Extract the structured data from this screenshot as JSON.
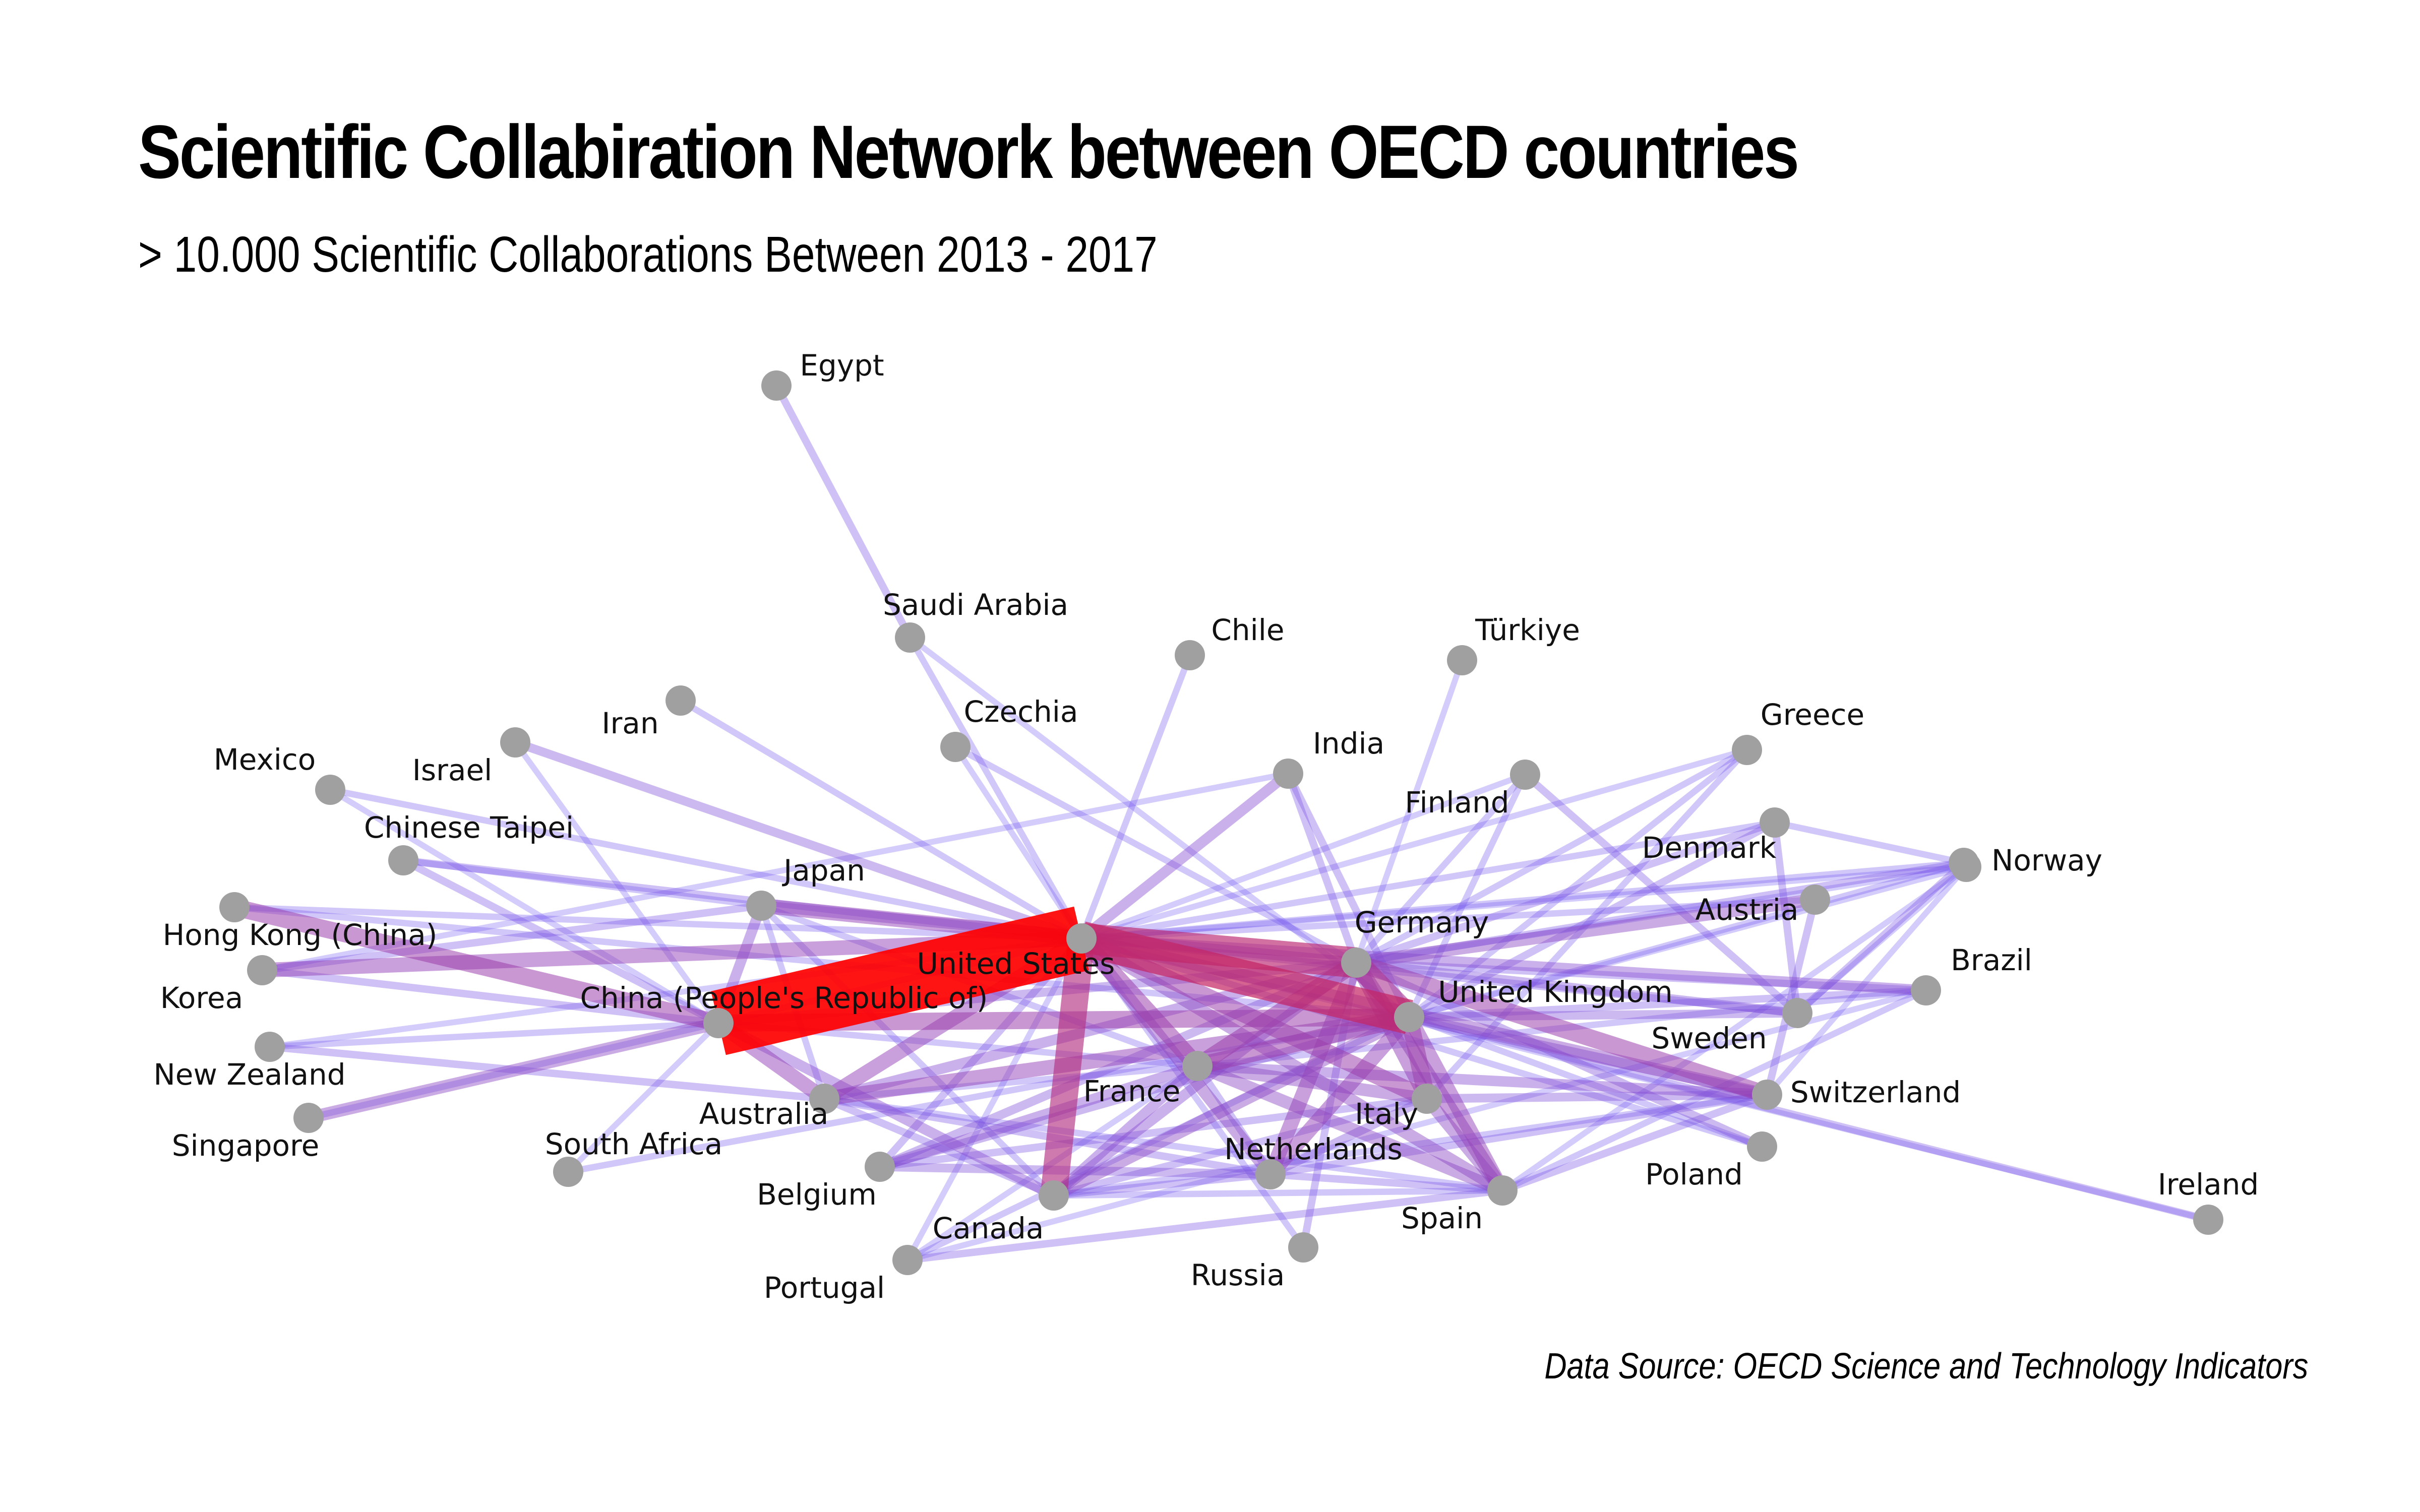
{
  "title": "Scientific Collabiration Network between OECD countries",
  "subtitle": "> 10.000 Scientific Collaborations Between 2013 - 2017",
  "source": "Data Source: OECD Science and Technology Indicators",
  "colors": {
    "node": "#a0a0a0",
    "weak_edge": "#6a5cff",
    "strong_edge": "#ff0000"
  },
  "nodes": [
    {
      "id": "us",
      "label": "United States"
    },
    {
      "id": "cn",
      "label": "China (People's Republic of)"
    },
    {
      "id": "de",
      "label": "Germany"
    },
    {
      "id": "uk",
      "label": "United Kingdom"
    },
    {
      "id": "fr",
      "label": "France"
    },
    {
      "id": "it",
      "label": "Italy"
    },
    {
      "id": "ca",
      "label": "Canada"
    },
    {
      "id": "au",
      "label": "Australia"
    },
    {
      "id": "jp",
      "label": "Japan"
    },
    {
      "id": "es",
      "label": "Spain"
    },
    {
      "id": "nl",
      "label": "Netherlands"
    },
    {
      "id": "ch",
      "label": "Switzerland"
    },
    {
      "id": "se",
      "label": "Sweden"
    },
    {
      "id": "be",
      "label": "Belgium"
    },
    {
      "id": "kr",
      "label": "Korea"
    },
    {
      "id": "in",
      "label": "India"
    },
    {
      "id": "br",
      "label": "Brazil"
    },
    {
      "id": "at",
      "label": "Austria"
    },
    {
      "id": "dk",
      "label": "Denmark"
    },
    {
      "id": "no",
      "label": "Norway"
    },
    {
      "id": "pl",
      "label": "Poland"
    },
    {
      "id": "fi",
      "label": "Finland"
    },
    {
      "id": "ru",
      "label": "Russia"
    },
    {
      "id": "pt",
      "label": "Portugal"
    },
    {
      "id": "gr",
      "label": "Greece"
    },
    {
      "id": "ie",
      "label": "Ireland"
    },
    {
      "id": "tr",
      "label": "Türkiye"
    },
    {
      "id": "cl",
      "label": "Chile"
    },
    {
      "id": "cz",
      "label": "Czechia"
    },
    {
      "id": "sa",
      "label": "Saudi Arabia"
    },
    {
      "id": "eg",
      "label": "Egypt"
    },
    {
      "id": "ir",
      "label": "Iran"
    },
    {
      "id": "il",
      "label": "Israel"
    },
    {
      "id": "mx",
      "label": "Mexico"
    },
    {
      "id": "tw",
      "label": "Chinese Taipei"
    },
    {
      "id": "hk",
      "label": "Hong Kong (China)"
    },
    {
      "id": "nz",
      "label": "New Zealand"
    },
    {
      "id": "sg",
      "label": "Singapore"
    },
    {
      "id": "za",
      "label": "South Africa"
    },
    {
      "id": "ext",
      "label": ""
    }
  ],
  "edges": [
    {
      "s": "us",
      "t": "cn",
      "w": 1.0
    },
    {
      "s": "us",
      "t": "uk",
      "w": 0.7
    },
    {
      "s": "us",
      "t": "de",
      "w": 0.65
    },
    {
      "s": "us",
      "t": "ca",
      "w": 0.6
    },
    {
      "s": "us",
      "t": "fr",
      "w": 0.45
    },
    {
      "s": "us",
      "t": "it",
      "w": 0.45
    },
    {
      "s": "us",
      "t": "au",
      "w": 0.4
    },
    {
      "s": "us",
      "t": "kr",
      "w": 0.4
    },
    {
      "s": "us",
      "t": "jp",
      "w": 0.4
    },
    {
      "s": "us",
      "t": "es",
      "w": 0.35
    },
    {
      "s": "us",
      "t": "ch",
      "w": 0.35
    },
    {
      "s": "us",
      "t": "nl",
      "w": 0.35
    },
    {
      "s": "us",
      "t": "in",
      "w": 0.3
    },
    {
      "s": "us",
      "t": "br",
      "w": 0.3
    },
    {
      "s": "us",
      "t": "il",
      "w": 0.25
    },
    {
      "s": "us",
      "t": "tw",
      "w": 0.2
    },
    {
      "s": "us",
      "t": "se",
      "w": 0.2
    },
    {
      "s": "us",
      "t": "hk",
      "w": 0.15
    },
    {
      "s": "us",
      "t": "cl",
      "w": 0.15
    },
    {
      "s": "us",
      "t": "ir",
      "w": 0.15
    },
    {
      "s": "us",
      "t": "mx",
      "w": 0.15
    },
    {
      "s": "us",
      "t": "sa",
      "w": 0.15
    },
    {
      "s": "us",
      "t": "dk",
      "w": 0.15
    },
    {
      "s": "us",
      "t": "be",
      "w": 0.2
    },
    {
      "s": "us",
      "t": "at",
      "w": 0.15
    },
    {
      "s": "us",
      "t": "no",
      "w": 0.15
    },
    {
      "s": "us",
      "t": "gr",
      "w": 0.12
    },
    {
      "s": "us",
      "t": "ie",
      "w": 0.12
    },
    {
      "s": "us",
      "t": "pt",
      "w": 0.12
    },
    {
      "s": "us",
      "t": "pl",
      "w": 0.15
    },
    {
      "s": "us",
      "t": "ru",
      "w": 0.15
    },
    {
      "s": "us",
      "t": "fi",
      "w": 0.12
    },
    {
      "s": "us",
      "t": "nz",
      "w": 0.12
    },
    {
      "s": "us",
      "t": "sg",
      "w": 0.15
    },
    {
      "s": "us",
      "t": "cz",
      "w": 0.12
    },
    {
      "s": "cn",
      "t": "uk",
      "w": 0.45
    },
    {
      "s": "cn",
      "t": "au",
      "w": 0.4
    },
    {
      "s": "cn",
      "t": "hk",
      "w": 0.45
    },
    {
      "s": "cn",
      "t": "sg",
      "w": 0.35
    },
    {
      "s": "cn",
      "t": "jp",
      "w": 0.3
    },
    {
      "s": "cn",
      "t": "ca",
      "w": 0.3
    },
    {
      "s": "cn",
      "t": "de",
      "w": 0.25
    },
    {
      "s": "cn",
      "t": "kr",
      "w": 0.2
    },
    {
      "s": "cn",
      "t": "tw",
      "w": 0.2
    },
    {
      "s": "cn",
      "t": "fr",
      "w": 0.15
    },
    {
      "s": "cn",
      "t": "nz",
      "w": 0.15
    },
    {
      "s": "cn",
      "t": "mx",
      "w": 0.12
    },
    {
      "s": "cn",
      "t": "za",
      "w": 0.12
    },
    {
      "s": "cn",
      "t": "il",
      "w": 0.12
    },
    {
      "s": "de",
      "t": "uk",
      "w": 0.55
    },
    {
      "s": "de",
      "t": "fr",
      "w": 0.45
    },
    {
      "s": "de",
      "t": "it",
      "w": 0.4
    },
    {
      "s": "de",
      "t": "ch",
      "w": 0.45
    },
    {
      "s": "de",
      "t": "nl",
      "w": 0.4
    },
    {
      "s": "de",
      "t": "es",
      "w": 0.4
    },
    {
      "s": "de",
      "t": "at",
      "w": 0.35
    },
    {
      "s": "de",
      "t": "se",
      "w": 0.25
    },
    {
      "s": "de",
      "t": "pl",
      "w": 0.25
    },
    {
      "s": "de",
      "t": "be",
      "w": 0.25
    },
    {
      "s": "de",
      "t": "ca",
      "w": 0.3
    },
    {
      "s": "de",
      "t": "au",
      "w": 0.3
    },
    {
      "s": "de",
      "t": "jp",
      "w": 0.3
    },
    {
      "s": "de",
      "t": "dk",
      "w": 0.2
    },
    {
      "s": "de",
      "t": "no",
      "w": 0.2
    },
    {
      "s": "de",
      "t": "ru",
      "w": 0.2
    },
    {
      "s": "de",
      "t": "in",
      "w": 0.2
    },
    {
      "s": "de",
      "t": "br",
      "w": 0.2
    },
    {
      "s": "de",
      "t": "fi",
      "w": 0.15
    },
    {
      "s": "de",
      "t": "cz",
      "w": 0.15
    },
    {
      "s": "de",
      "t": "gr",
      "w": 0.15
    },
    {
      "s": "de",
      "t": "tr",
      "w": 0.12
    },
    {
      "s": "uk",
      "t": "fr",
      "w": 0.45
    },
    {
      "s": "uk",
      "t": "it",
      "w": 0.45
    },
    {
      "s": "uk",
      "t": "es",
      "w": 0.4
    },
    {
      "s": "uk",
      "t": "au",
      "w": 0.4
    },
    {
      "s": "uk",
      "t": "nl",
      "w": 0.4
    },
    {
      "s": "uk",
      "t": "ca",
      "w": 0.35
    },
    {
      "s": "uk",
      "t": "ch",
      "w": 0.3
    },
    {
      "s": "uk",
      "t": "se",
      "w": 0.25
    },
    {
      "s": "uk",
      "t": "be",
      "w": 0.25
    },
    {
      "s": "uk",
      "t": "dk",
      "w": 0.2
    },
    {
      "s": "uk",
      "t": "ie",
      "w": 0.2
    },
    {
      "s": "uk",
      "t": "in",
      "w": 0.2
    },
    {
      "s": "uk",
      "t": "br",
      "w": 0.2
    },
    {
      "s": "uk",
      "t": "gr",
      "w": 0.15
    },
    {
      "s": "uk",
      "t": "no",
      "w": 0.15
    },
    {
      "s": "uk",
      "t": "pt",
      "w": 0.15
    },
    {
      "s": "uk",
      "t": "pl",
      "w": 0.15
    },
    {
      "s": "uk",
      "t": "fi",
      "w": 0.15
    },
    {
      "s": "uk",
      "t": "za",
      "w": 0.15
    },
    {
      "s": "uk",
      "t": "hk",
      "w": 0.15
    },
    {
      "s": "uk",
      "t": "sa",
      "w": 0.12
    },
    {
      "s": "fr",
      "t": "it",
      "w": 0.35
    },
    {
      "s": "fr",
      "t": "es",
      "w": 0.35
    },
    {
      "s": "fr",
      "t": "ch",
      "w": 0.3
    },
    {
      "s": "fr",
      "t": "ca",
      "w": 0.3
    },
    {
      "s": "fr",
      "t": "be",
      "w": 0.3
    },
    {
      "s": "fr",
      "t": "nl",
      "w": 0.2
    },
    {
      "s": "fr",
      "t": "br",
      "w": 0.15
    },
    {
      "s": "fr",
      "t": "jp",
      "w": 0.15
    },
    {
      "s": "fr",
      "t": "au",
      "w": 0.15
    },
    {
      "s": "fr",
      "t": "pt",
      "w": 0.12
    },
    {
      "s": "it",
      "t": "es",
      "w": 0.35
    },
    {
      "s": "it",
      "t": "ch",
      "w": 0.25
    },
    {
      "s": "it",
      "t": "nl",
      "w": 0.25
    },
    {
      "s": "it",
      "t": "ca",
      "w": 0.2
    },
    {
      "s": "it",
      "t": "be",
      "w": 0.2
    },
    {
      "s": "it",
      "t": "gr",
      "w": 0.15
    },
    {
      "s": "es",
      "t": "nl",
      "w": 0.2
    },
    {
      "s": "es",
      "t": "pt",
      "w": 0.2
    },
    {
      "s": "es",
      "t": "ch",
      "w": 0.2
    },
    {
      "s": "es",
      "t": "br",
      "w": 0.15
    },
    {
      "s": "es",
      "t": "ca",
      "w": 0.15
    },
    {
      "s": "es",
      "t": "au",
      "w": 0.15
    },
    {
      "s": "ca",
      "t": "au",
      "w": 0.2
    },
    {
      "s": "ca",
      "t": "nl",
      "w": 0.2
    },
    {
      "s": "ca",
      "t": "ch",
      "w": 0.15
    },
    {
      "s": "ca",
      "t": "jp",
      "w": 0.15
    },
    {
      "s": "au",
      "t": "nz",
      "w": 0.2
    },
    {
      "s": "au",
      "t": "nl",
      "w": 0.2
    },
    {
      "s": "au",
      "t": "jp",
      "w": 0.15
    },
    {
      "s": "jp",
      "t": "kr",
      "w": 0.2
    },
    {
      "s": "jp",
      "t": "tw",
      "w": 0.15
    },
    {
      "s": "nl",
      "t": "be",
      "w": 0.25
    },
    {
      "s": "nl",
      "t": "ch",
      "w": 0.2
    },
    {
      "s": "ch",
      "t": "at",
      "w": 0.2
    },
    {
      "s": "se",
      "t": "no",
      "w": 0.2
    },
    {
      "s": "se",
      "t": "dk",
      "w": 0.2
    },
    {
      "s": "se",
      "t": "fi",
      "w": 0.2
    },
    {
      "s": "dk",
      "t": "no",
      "w": 0.15
    },
    {
      "s": "in",
      "t": "kr",
      "w": 0.12
    },
    {
      "s": "sa",
      "t": "eg",
      "w": 0.2
    },
    {
      "s": "br",
      "t": "pt",
      "w": 0.12
    },
    {
      "s": "ext",
      "t": "de",
      "w": 0.12
    },
    {
      "s": "ext",
      "t": "uk",
      "w": 0.12
    },
    {
      "s": "ext",
      "t": "se",
      "w": 0.12
    },
    {
      "s": "ext",
      "t": "ch",
      "w": 0.12
    },
    {
      "s": "ext",
      "t": "es",
      "w": 0.12
    },
    {
      "s": "ext",
      "t": "us",
      "w": 0.12
    }
  ]
}
